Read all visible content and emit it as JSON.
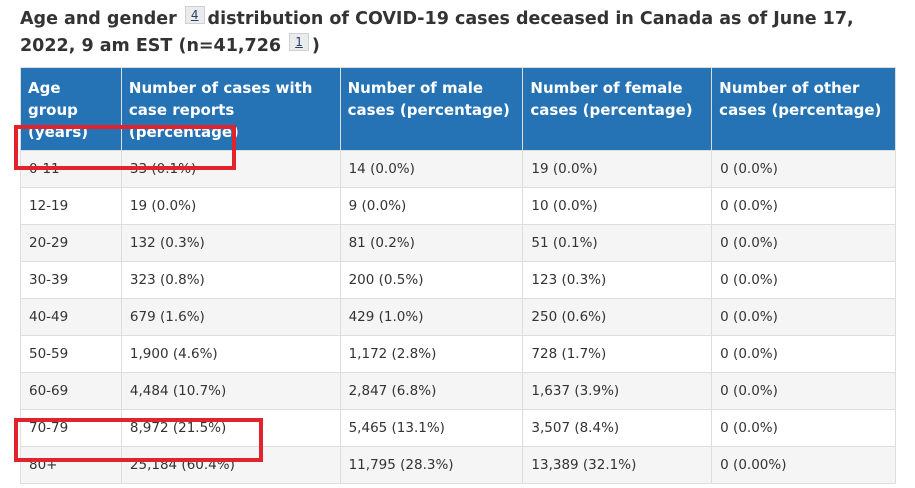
{
  "caption": {
    "text_before": "Age and gender",
    "footnote_a": "4",
    "text_middle": "distribution of COVID-19 cases deceased in Canada as of June 17, 2022, 9 am EST (n=41,726",
    "footnote_b": "1",
    "text_after": ")"
  },
  "table": {
    "headers": [
      "Age group (years)",
      "Number of cases with case reports (percentage)",
      "Number of male cases (percentage)",
      "Number of female cases (percentage)",
      "Number of other cases (percentage)"
    ],
    "rows": [
      [
        "0-11",
        "33 (0.1%)",
        "14 (0.0%)",
        "19 (0.0%)",
        "0 (0.0%)"
      ],
      [
        "12-19",
        "19 (0.0%)",
        "9 (0.0%)",
        "10 (0.0%)",
        "0 (0.0%)"
      ],
      [
        "20-29",
        "132 (0.3%)",
        "81 (0.2%)",
        "51 (0.1%)",
        "0 (0.0%)"
      ],
      [
        "30-39",
        "323 (0.8%)",
        "200 (0.5%)",
        "123 (0.3%)",
        "0 (0.0%)"
      ],
      [
        "40-49",
        "679 (1.6%)",
        "429 (1.0%)",
        "250 (0.6%)",
        "0 (0.0%)"
      ],
      [
        "50-59",
        "1,900 (4.6%)",
        "1,172 (2.8%)",
        "728 (1.7%)",
        "0 (0.0%)"
      ],
      [
        "60-69",
        "4,484 (10.7%)",
        "2,847 (6.8%)",
        "1,637 (3.9%)",
        "0 (0.0%)"
      ],
      [
        "70-79",
        "8,972 (21.5%)",
        "5,465 (13.1%)",
        "3,507 (8.4%)",
        "0 (0.0%)"
      ],
      [
        "80+",
        "25,184 (60.4%)",
        "11,795 (28.3%)",
        "13,389 (32.1%)",
        "0 (0.00%)"
      ]
    ]
  },
  "colors": {
    "header_bg": "#2572b4",
    "highlight": "#e2232b",
    "stripe": "#f5f5f5"
  }
}
